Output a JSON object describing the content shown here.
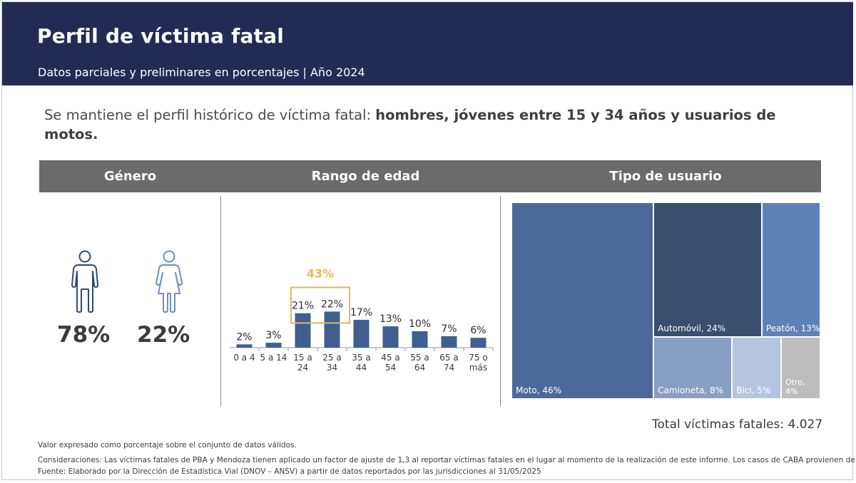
{
  "header": {
    "title": "Perfil de víctima fatal",
    "subtitle": "Datos parciales y preliminares en porcentajes | Año 2024"
  },
  "lead": {
    "plain": "Se mantiene el perfil histórico de víctima fatal: ",
    "bold": "hombres, jóvenes entre 15 y 34 años y usuarios de motos."
  },
  "sections": {
    "genero": "Género",
    "rango": "Rango de edad",
    "tipo": "Tipo de usuario"
  },
  "genero": {
    "male_pct": "78%",
    "female_pct": "22%",
    "male_icon": "male-person-icon",
    "female_icon": "female-person-icon",
    "male_color": "#2e4a72",
    "female_color": "#6d8ec2"
  },
  "chart_data": [
    {
      "type": "bar",
      "title": "Rango de edad",
      "categories": [
        "0 a 4",
        "5 a 14",
        "15 a 24",
        "25 a 34",
        "35 a 44",
        "45 a 54",
        "55 a 64",
        "65 a 74",
        "75 o más"
      ],
      "category_lines": [
        [
          "0 a 4"
        ],
        [
          "5 a 14"
        ],
        [
          "15 a",
          "24"
        ],
        [
          "25 a",
          "34"
        ],
        [
          "35 a",
          "44"
        ],
        [
          "45 a",
          "54"
        ],
        [
          "55 a",
          "64"
        ],
        [
          "65 a",
          "74"
        ],
        [
          "75 o",
          "más"
        ]
      ],
      "values": [
        2,
        3,
        21,
        22,
        17,
        13,
        10,
        7,
        6
      ],
      "labels": [
        "2%",
        "3%",
        "21%",
        "22%",
        "17%",
        "13%",
        "10%",
        "7%",
        "6%"
      ],
      "highlight": {
        "categories": [
          "15 a 24",
          "25 a 34"
        ],
        "label": "43%",
        "color": "#e3b75c"
      },
      "bar_color": "#3f5f8f",
      "ylim": [
        0,
        25
      ]
    },
    {
      "type": "treemap",
      "title": "Tipo de usuario",
      "items": [
        {
          "name": "Moto",
          "value": 46,
          "label": "Moto, 46%",
          "color": "#4c6a99"
        },
        {
          "name": "Automóvil",
          "value": 24,
          "label": "Automóvil, 24%",
          "color": "#384f6e"
        },
        {
          "name": "Peatón",
          "value": 13,
          "label": "Peatón, 13%",
          "color": "#5f82b6"
        },
        {
          "name": "Camioneta",
          "value": 8,
          "label": "Camioneta, 8%",
          "color": "#889fc4"
        },
        {
          "name": "Bici",
          "value": 5,
          "label": "Bici, 5%",
          "color": "#b5c5df"
        },
        {
          "name": "Otro",
          "value": 4,
          "label": "Otro, 4%",
          "color": "#bdbdbd"
        }
      ]
    }
  ],
  "total": "Total víctimas fatales: 4.027",
  "notes": {
    "valor": "Valor expresado como porcentaje sobre el conjunto de datos válidos.",
    "consideraciones": "Consideraciones: Las víctimas fatales de PBA y Mendoza tienen aplicado un factor de ajuste de 1,3 al reportar víctimas fatales en el lugar al momento de la realización de este informe. Los casos de CABA provienen de SNIC.",
    "fuente": "Fuente: Elaborado por la Dirección de Estadística Vial (DNOV – ANSV) a partir de datos reportados por las jurisdicciones al 31/05/2025"
  }
}
